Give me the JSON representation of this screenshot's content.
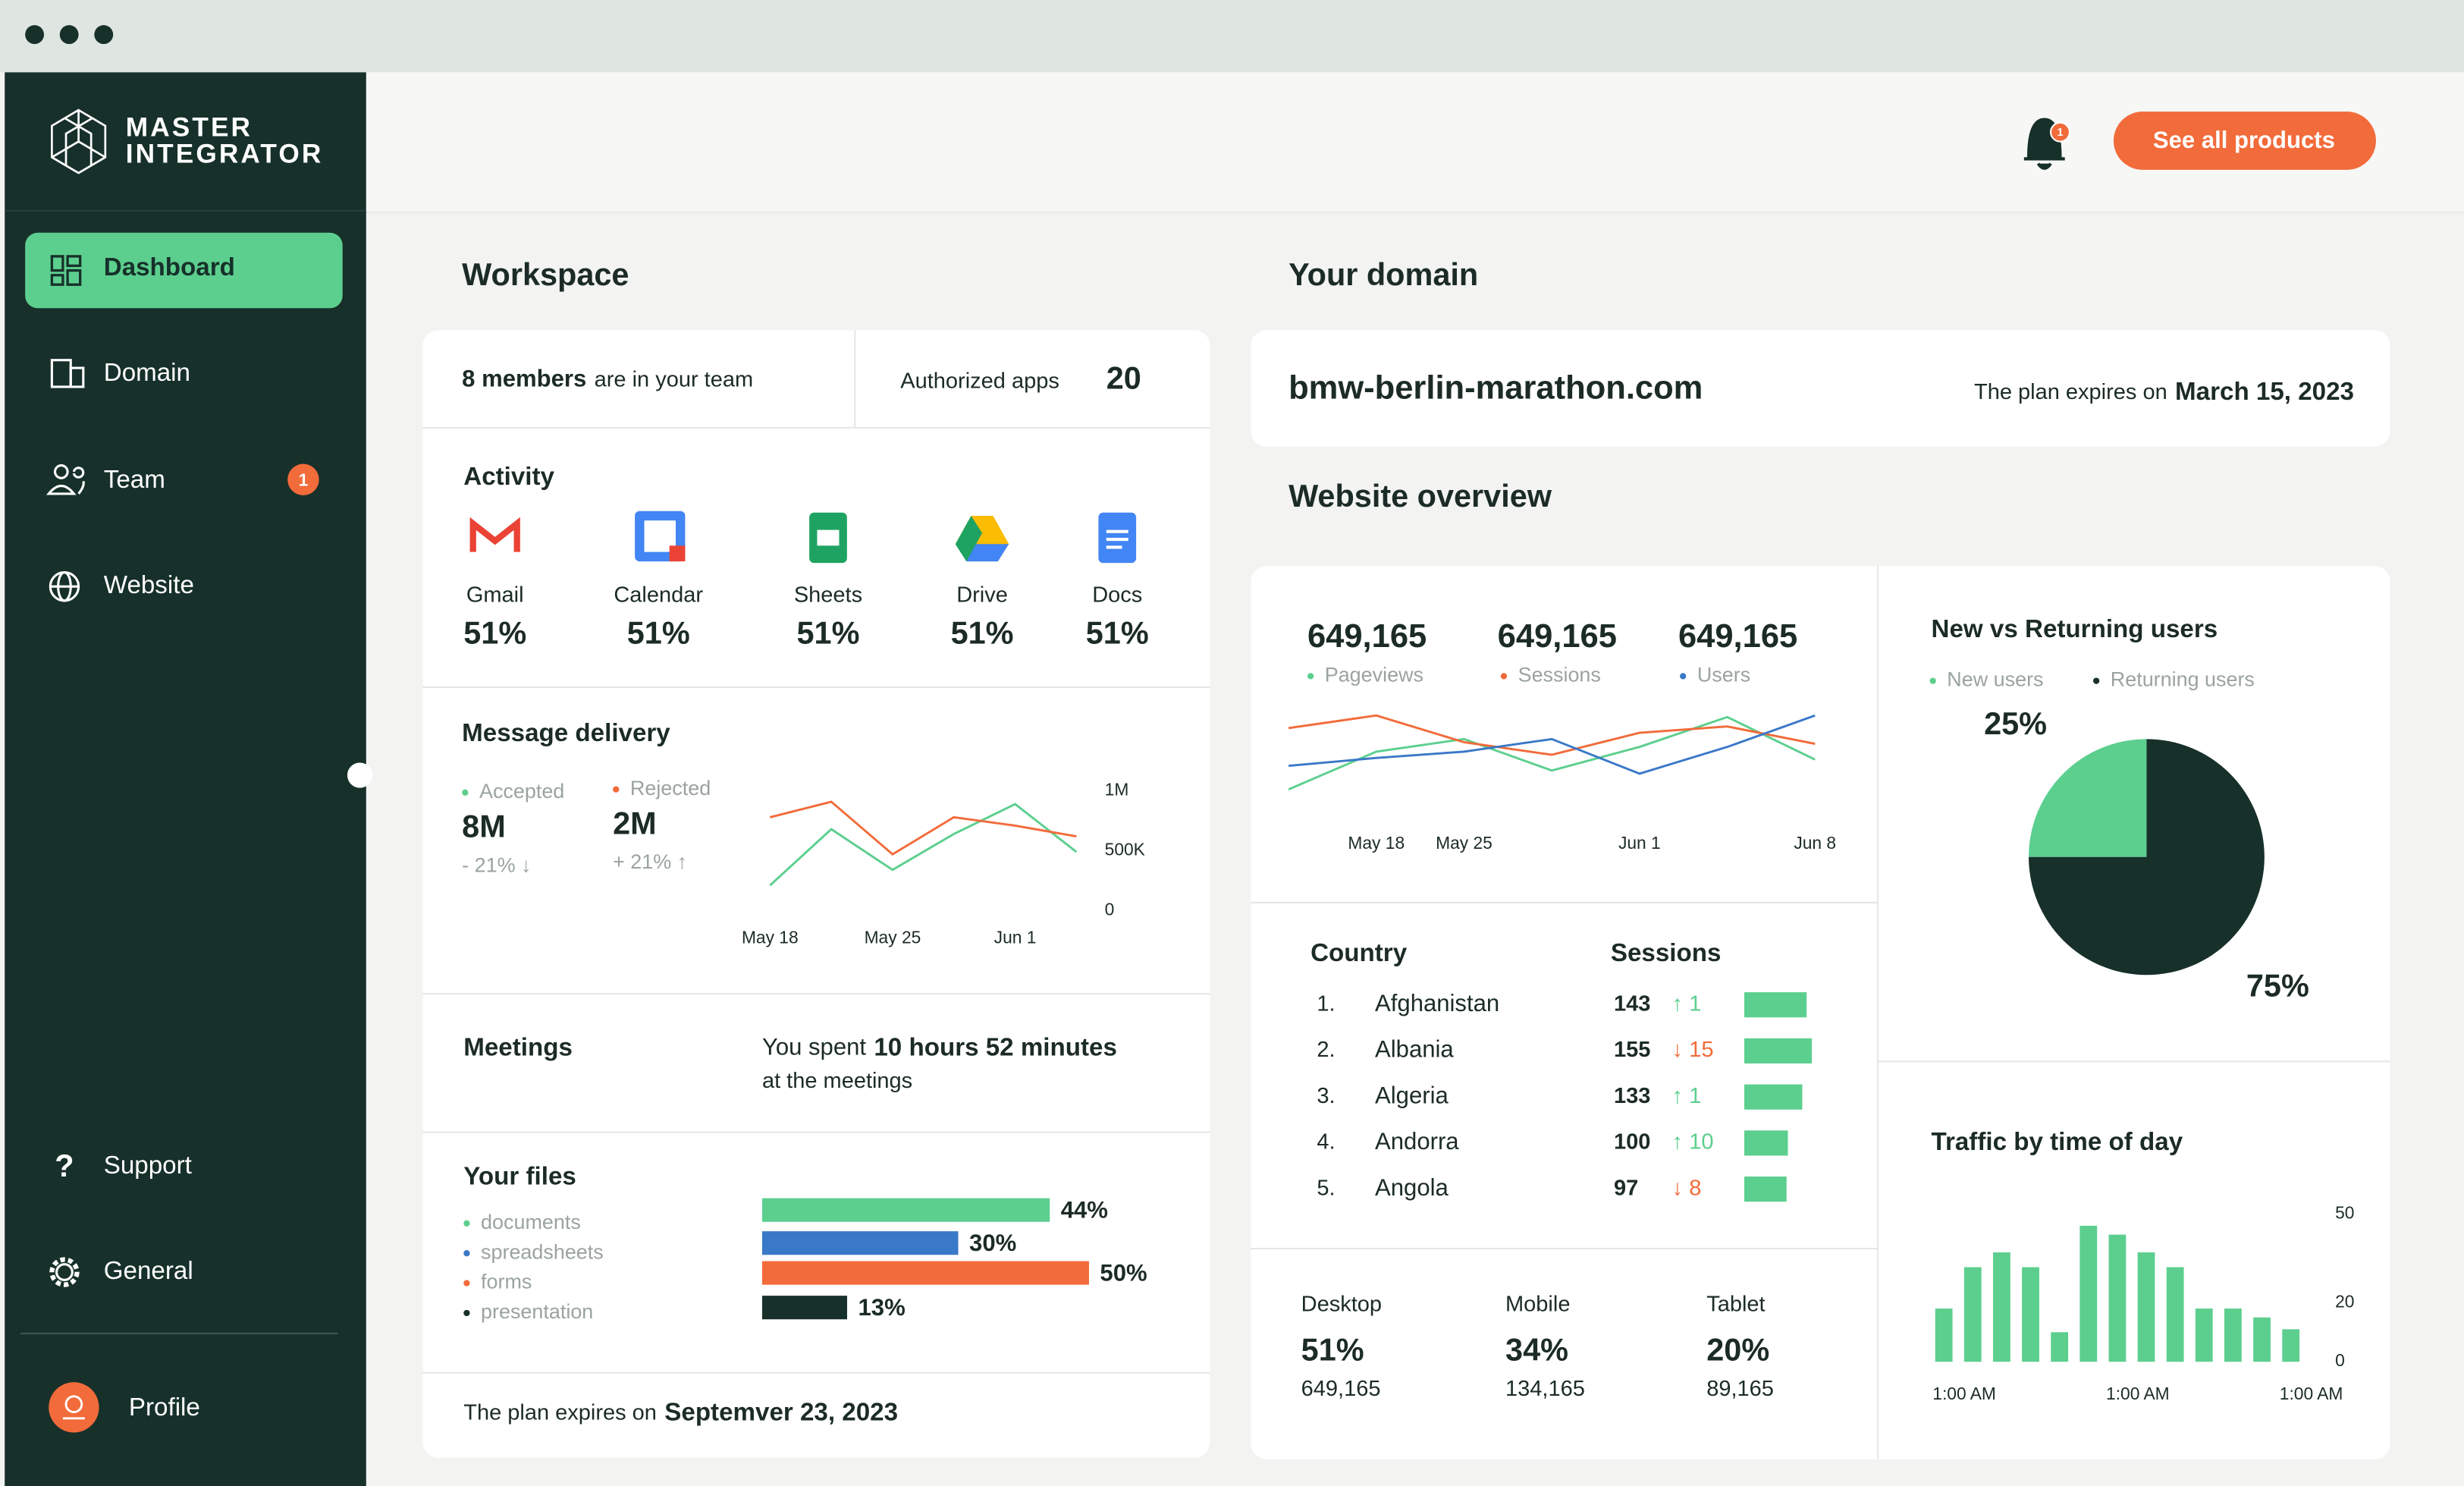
{
  "sidebar": {
    "brand": [
      "MASTER",
      "INTEGRATOR"
    ],
    "nav": [
      "Dashboard",
      "Domain",
      "Team",
      "Website"
    ],
    "team_badge": "1",
    "support": "Support",
    "general": "General",
    "profile": "Profile"
  },
  "header": {
    "bell_badge": "1",
    "button": "See all products"
  },
  "workspace": {
    "title": "Workspace",
    "members_bold": "8 members",
    "members_rest": "are in your team",
    "apps_label": "Authorized apps",
    "apps_count": "20",
    "activity_title": "Activity",
    "apps": [
      {
        "name": "Gmail",
        "value": "51%"
      },
      {
        "name": "Calendar",
        "value": "51%"
      },
      {
        "name": "Sheets",
        "value": "51%"
      },
      {
        "name": "Drive",
        "value": "51%"
      },
      {
        "name": "Docs",
        "value": "51%"
      }
    ],
    "delivery_title": "Message delivery",
    "delivery_stats": [
      {
        "value": "8M",
        "change": "- 21% ↓"
      },
      {
        "value": "2M",
        "change": "+ 21% ↑"
      }
    ],
    "meetings": {
      "title": "Meetings",
      "text_before": "You spent",
      "bold": "10 hours 52 minutes",
      "text_after": "at the meetings"
    },
    "plan": {
      "text": "The plan expires on",
      "date": "Septemver 23, 2023"
    }
  },
  "domain": {
    "title": "Your domain",
    "name": "bmw-berlin-marathon.com",
    "plan_text": "The plan expires on",
    "plan_date": "March 15, 2023",
    "overview_title": "Website overview",
    "overview_stats": [
      "649,165",
      "649,165",
      "649,165"
    ],
    "countries": {
      "headers": [
        "Country",
        "Sessions"
      ],
      "rows": [
        {
          "rank": "1.",
          "name": "Afghanistan",
          "sessions": 143,
          "change": "↑ 1",
          "trend": "up"
        },
        {
          "rank": "2.",
          "name": "Albania",
          "sessions": 155,
          "change": "↓ 15",
          "trend": "down"
        },
        {
          "rank": "3.",
          "name": "Algeria",
          "sessions": 133,
          "change": "↑ 1",
          "trend": "up"
        },
        {
          "rank": "4.",
          "name": "Andorra",
          "sessions": 100,
          "change": "↑ 10",
          "trend": "up"
        },
        {
          "rank": "5.",
          "name": "Angola",
          "sessions": 97,
          "change": "↓ 8",
          "trend": "down"
        }
      ]
    },
    "devices": [
      {
        "name": "Desktop",
        "share": "51%",
        "count": "649,165"
      },
      {
        "name": "Mobile",
        "share": "34%",
        "count": "134,165"
      },
      {
        "name": "Tablet",
        "share": "20%",
        "count": "89,165"
      }
    ]
  },
  "chart_data": [
    {
      "type": "line",
      "categories": [
        "May 18",
        null,
        "May 25",
        null,
        "Jun 1",
        null
      ],
      "series": [
        {
          "name": "Accepted",
          "color": "#5ccf8e",
          "values": [
            210000,
            680000,
            340000,
            640000,
            890000,
            490000
          ]
        },
        {
          "name": "Rejected",
          "color": "#f26b3a",
          "values": [
            780000,
            910000,
            470000,
            780000,
            710000,
            620000
          ]
        }
      ],
      "ylim": [
        0,
        1000000
      ],
      "yticks": [
        0,
        {
          "value": 500000,
          "label": "500K"
        },
        {
          "value": 1000000,
          "label": "1M"
        }
      ]
    },
    {
      "type": "line",
      "categories": [
        null,
        "May 18",
        "May 25",
        null,
        "Jun 1",
        null,
        "Jun 8"
      ],
      "series": [
        {
          "name": "Pageviews",
          "color": "#5ccf8e",
          "values": [
            8,
            32,
            40,
            20,
            35,
            54,
            27
          ]
        },
        {
          "name": "Sessions",
          "color": "#f26b3a",
          "values": [
            47,
            55,
            38,
            30,
            44,
            48,
            37
          ]
        },
        {
          "name": "Users",
          "color": "#3a78c8",
          "values": [
            23,
            28,
            32,
            40,
            18,
            35,
            55
          ]
        }
      ],
      "ylim": [
        0,
        60
      ]
    },
    {
      "type": "hbar",
      "title": "Your files",
      "categories": [
        "documents",
        "spreadsheets",
        "forms",
        "presentation"
      ],
      "values": [
        44,
        30,
        50,
        13
      ],
      "value_labels": [
        "44%",
        "30%",
        "50%",
        "13%"
      ],
      "colors": [
        "#5ccf8e",
        "#3a78c8",
        "#f26b3a",
        "#17302a"
      ],
      "xlim": [
        0,
        50
      ]
    },
    {
      "type": "pie",
      "title": "New vs Returning users",
      "categories": [
        "New users",
        "Returning users"
      ],
      "values": [
        25,
        75
      ],
      "value_labels": [
        "25%",
        "75%"
      ],
      "colors": [
        "#5ccf8e",
        "#17302a"
      ]
    },
    {
      "type": "bar",
      "title": "Traffic by time of day",
      "categories": [
        "1:00 AM",
        null,
        null,
        null,
        null,
        null,
        "1:00 AM",
        null,
        null,
        null,
        null,
        null,
        "1:00 AM"
      ],
      "values": [
        18,
        32,
        37,
        32,
        10,
        46,
        43,
        37,
        32,
        18,
        18,
        15,
        11
      ],
      "color": "#5ccf8e",
      "ylim": [
        0,
        50
      ],
      "yticks": [
        0,
        20,
        50
      ]
    }
  ]
}
